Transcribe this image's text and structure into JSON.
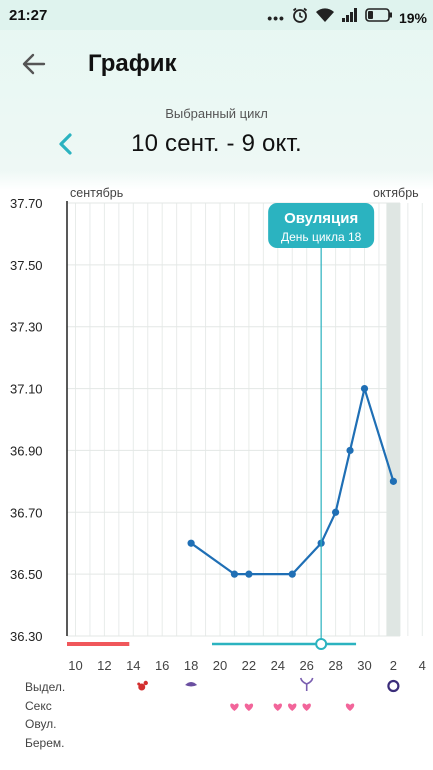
{
  "status_bar": {
    "time": "21:27",
    "battery_percent": "19%",
    "icons": [
      "more-dots-icon",
      "alarm-icon",
      "wifi-icon",
      "signal-icon",
      "battery-icon"
    ]
  },
  "header": {
    "title": "График",
    "back_icon": "arrow-left-icon"
  },
  "cycle": {
    "caption": "Выбранный цикл",
    "range": "10 сент. - 9 окт.",
    "prev_icon": "chevron-left-icon"
  },
  "colors": {
    "accent": "#2bb3c0",
    "line": "#1f6fb5",
    "period": "#f0575b",
    "heart": "#f2659a"
  },
  "chart_data": {
    "type": "line",
    "title": "",
    "xlabel": "",
    "ylabel": "",
    "x_ticks": [
      "10",
      "12",
      "14",
      "16",
      "18",
      "20",
      "22",
      "24",
      "26",
      "28",
      "30",
      "2",
      "4"
    ],
    "ylim": [
      36.3,
      37.7
    ],
    "y_ticks": [
      "37.70",
      "37.50",
      "37.30",
      "37.10",
      "36.90",
      "36.70",
      "36.50",
      "36.30"
    ],
    "month_labels": {
      "left": "сентябрь",
      "right": "октябрь"
    },
    "series": [
      {
        "points": [
          {
            "day": "18 сент.",
            "value": 36.6
          },
          {
            "day": "21 сент.",
            "value": 36.5
          },
          {
            "day": "22 сент.",
            "value": 36.5
          },
          {
            "day": "25 сент.",
            "value": 36.5
          },
          {
            "day": "27 сент.",
            "value": 36.6
          },
          {
            "day": "28 сент.",
            "value": 36.7
          },
          {
            "day": "29 сент.",
            "value": 36.9
          },
          {
            "day": "30 сент.",
            "value": 37.1
          },
          {
            "day": "2 окт.",
            "value": 36.8
          }
        ]
      }
    ],
    "ovulation": {
      "title": "Овуляция",
      "subtitle": "День цикла 18",
      "day": "27 сент."
    },
    "highlight_day": "2 окт.",
    "grid": true,
    "bottom_bar": {
      "period_until": "14 сент.",
      "fertile_from": "20 сент.",
      "fertile_to": "29 сент."
    }
  },
  "legend_rows": {
    "labels": [
      "Выдел.",
      "Секс",
      "Овул.",
      "Берем."
    ],
    "discharge_marks": [
      {
        "day": "15 сент.",
        "icon": "blood-drop-icon"
      },
      {
        "day": "18 сент.",
        "icon": "eye-shape-icon"
      },
      {
        "day": "26 сент.",
        "icon": "sprout-icon"
      },
      {
        "day": "2 окт.",
        "icon": "ring-icon"
      }
    ],
    "sex_marks": [
      "21 сент.",
      "22 сент.",
      "24 сент.",
      "25 сент.",
      "26 сент.",
      "29 сент."
    ]
  }
}
